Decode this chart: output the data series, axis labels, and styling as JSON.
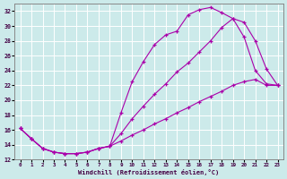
{
  "xlabel": "Windchill (Refroidissement éolien,°C)",
  "bg_color": "#cceaea",
  "line_color": "#aa00aa",
  "grid_color": "#ffffff",
  "xlim": [
    -0.5,
    23.5
  ],
  "ylim": [
    12,
    33
  ],
  "yticks": [
    12,
    14,
    16,
    18,
    20,
    22,
    24,
    26,
    28,
    30,
    32
  ],
  "xticks": [
    0,
    1,
    2,
    3,
    4,
    5,
    6,
    7,
    8,
    9,
    10,
    11,
    12,
    13,
    14,
    15,
    16,
    17,
    18,
    19,
    20,
    21,
    22,
    23
  ],
  "curve1_x": [
    0,
    1,
    2,
    3,
    4,
    5,
    6,
    7,
    8,
    9,
    10,
    11,
    12,
    13,
    14,
    15,
    16,
    17,
    18,
    19,
    20,
    21,
    22,
    23
  ],
  "curve1_y": [
    16.2,
    14.8,
    13.5,
    13.0,
    12.8,
    12.8,
    13.0,
    13.5,
    13.8,
    18.3,
    22.5,
    25.2,
    27.5,
    28.8,
    29.3,
    31.5,
    32.2,
    32.5,
    31.8,
    31.0,
    28.5,
    24.0,
    22.2,
    22.0
  ],
  "curve2_x": [
    0,
    1,
    2,
    3,
    4,
    5,
    6,
    7,
    8,
    9,
    10,
    11,
    12,
    13,
    14,
    15,
    16,
    17,
    18,
    19,
    20,
    21,
    22,
    23
  ],
  "curve2_y": [
    16.2,
    14.8,
    13.5,
    13.0,
    12.8,
    12.8,
    13.0,
    13.5,
    13.8,
    15.5,
    17.5,
    19.2,
    20.8,
    22.2,
    23.8,
    25.0,
    26.5,
    28.0,
    29.8,
    31.0,
    30.5,
    28.0,
    24.2,
    22.0
  ],
  "curve3_x": [
    0,
    1,
    2,
    3,
    4,
    5,
    6,
    7,
    8,
    9,
    10,
    11,
    12,
    13,
    14,
    15,
    16,
    17,
    18,
    19,
    20,
    21,
    22,
    23
  ],
  "curve3_y": [
    16.2,
    14.8,
    13.5,
    13.0,
    12.8,
    12.8,
    13.0,
    13.5,
    13.8,
    14.5,
    15.3,
    16.0,
    16.8,
    17.5,
    18.3,
    19.0,
    19.8,
    20.5,
    21.2,
    22.0,
    22.5,
    22.8,
    22.0,
    22.0
  ],
  "marker": "+"
}
